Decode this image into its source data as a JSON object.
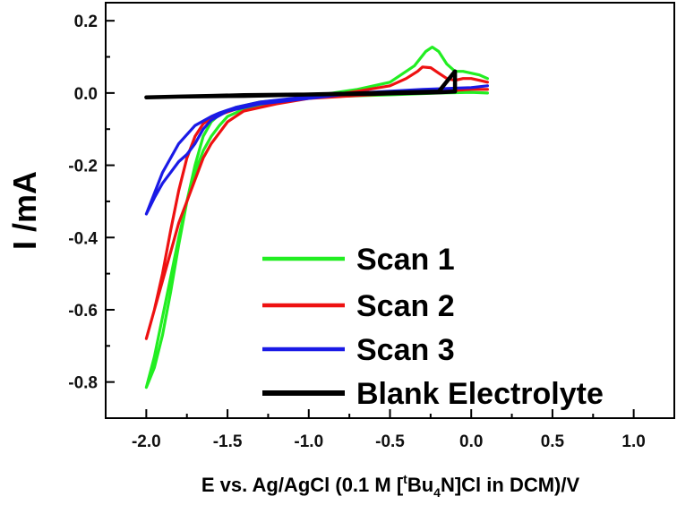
{
  "chart_data": {
    "type": "line",
    "xlabel_parts": [
      "E vs. Ag/AgCl (0.1 M [",
      "t",
      "Bu",
      "4",
      "N]Cl in DCM)/V"
    ],
    "ylabel": "I /mA",
    "xlim": [
      -2.25,
      1.25
    ],
    "ylim": [
      -0.9,
      0.25
    ],
    "x_ticks": [
      -2.0,
      -1.5,
      -1.0,
      -0.5,
      0.0,
      0.5,
      1.0
    ],
    "x_tick_labels": [
      "-2.0",
      "-1.5",
      "-1.0",
      "-0.5",
      "0.0",
      "0.5",
      "1.0"
    ],
    "y_ticks": [
      0.2,
      0.0,
      -0.2,
      -0.4,
      -0.6,
      -0.8
    ],
    "y_tick_labels": [
      "0.2",
      "0.0",
      "-0.2",
      "-0.4",
      "-0.6",
      "-0.8"
    ],
    "grid": false,
    "legend_position": "bottom-right",
    "series": [
      {
        "name": "Scan 1",
        "color": "#22ee22",
        "x": [
          0.1,
          0.0,
          -0.2,
          -0.5,
          -1.0,
          -1.3,
          -1.45,
          -1.55,
          -1.6,
          -1.65,
          -1.7,
          -1.75,
          -1.8,
          -1.85,
          -1.9,
          -1.95,
          -2.0,
          -1.95,
          -1.9,
          -1.85,
          -1.8,
          -1.75,
          -1.7,
          -1.65,
          -1.6,
          -1.55,
          -1.5,
          -1.4,
          -1.2,
          -1.0,
          -0.7,
          -0.5,
          -0.35,
          -0.28,
          -0.24,
          -0.2,
          -0.15,
          -0.1,
          -0.05,
          0.0,
          0.05,
          0.1
        ],
        "y": [
          0.0,
          0.002,
          0.0,
          -0.005,
          -0.012,
          -0.025,
          -0.04,
          -0.06,
          -0.08,
          -0.12,
          -0.2,
          -0.3,
          -0.42,
          -0.55,
          -0.67,
          -0.76,
          -0.815,
          -0.73,
          -0.62,
          -0.51,
          -0.4,
          -0.3,
          -0.22,
          -0.16,
          -0.12,
          -0.09,
          -0.065,
          -0.045,
          -0.025,
          -0.01,
          0.01,
          0.03,
          0.075,
          0.115,
          0.127,
          0.115,
          0.08,
          0.06,
          0.06,
          0.055,
          0.05,
          0.04
        ]
      },
      {
        "name": "Scan 2",
        "color": "#ee1111",
        "x": [
          0.1,
          0.0,
          -0.2,
          -0.5,
          -1.0,
          -1.3,
          -1.45,
          -1.55,
          -1.6,
          -1.65,
          -1.7,
          -1.75,
          -1.8,
          -1.85,
          -1.9,
          -1.95,
          -2.0,
          -1.95,
          -1.9,
          -1.85,
          -1.8,
          -1.75,
          -1.7,
          -1.65,
          -1.6,
          -1.55,
          -1.5,
          -1.4,
          -1.2,
          -1.0,
          -0.7,
          -0.5,
          -0.4,
          -0.33,
          -0.3,
          -0.25,
          -0.2,
          -0.15,
          -0.1,
          -0.05,
          0.0,
          0.05,
          0.1
        ],
        "y": [
          0.01,
          0.01,
          0.005,
          -0.002,
          -0.015,
          -0.028,
          -0.045,
          -0.06,
          -0.07,
          -0.085,
          -0.12,
          -0.18,
          -0.27,
          -0.38,
          -0.5,
          -0.6,
          -0.68,
          -0.6,
          -0.52,
          -0.44,
          -0.36,
          -0.3,
          -0.24,
          -0.18,
          -0.14,
          -0.11,
          -0.08,
          -0.05,
          -0.03,
          -0.015,
          0.005,
          0.02,
          0.04,
          0.06,
          0.072,
          0.07,
          0.055,
          0.04,
          0.035,
          0.04,
          0.04,
          0.035,
          0.03
        ]
      },
      {
        "name": "Scan 3",
        "color": "#1a1ae6",
        "x": [
          0.1,
          0.0,
          -0.3,
          -0.7,
          -1.0,
          -1.3,
          -1.45,
          -1.55,
          -1.6,
          -1.7,
          -1.8,
          -1.9,
          -2.0,
          -1.95,
          -1.9,
          -1.85,
          -1.8,
          -1.75,
          -1.7,
          -1.65,
          -1.6,
          -1.5,
          -1.3,
          -1.0,
          -0.7,
          -0.3,
          0.0,
          0.1
        ],
        "y": [
          0.02,
          0.015,
          0.01,
          0.0,
          -0.01,
          -0.025,
          -0.04,
          -0.055,
          -0.065,
          -0.09,
          -0.14,
          -0.22,
          -0.335,
          -0.29,
          -0.25,
          -0.22,
          -0.19,
          -0.17,
          -0.14,
          -0.1,
          -0.075,
          -0.05,
          -0.03,
          -0.015,
          0.0,
          0.01,
          0.015,
          0.02
        ]
      },
      {
        "name": "Blank Electrolyte",
        "color": "#000000",
        "x": [
          -2.0,
          -1.8,
          -1.6,
          -1.4,
          -1.2,
          -1.0,
          -0.8,
          -0.6,
          -0.4,
          -0.2,
          -0.1,
          -0.1,
          -0.2,
          -0.6,
          -1.0,
          -1.4,
          -1.8,
          -2.0
        ],
        "y": [
          -0.012,
          -0.01,
          -0.008,
          -0.006,
          -0.005,
          -0.004,
          -0.003,
          -0.002,
          0.0,
          0.002,
          0.004,
          0.06,
          0.004,
          0.0,
          -0.004,
          -0.008,
          -0.01,
          -0.012
        ]
      }
    ]
  }
}
